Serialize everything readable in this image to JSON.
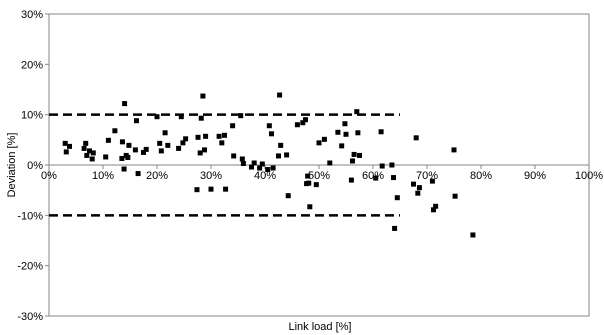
{
  "chart_data": {
    "type": "scatter",
    "xlabel": "Link load [%]",
    "ylabel": "Deviation [%]",
    "xlim": [
      0,
      100
    ],
    "ylim": [
      -30,
      30
    ],
    "x_ticks": [
      0,
      10,
      20,
      30,
      40,
      50,
      60,
      70,
      80,
      90,
      100
    ],
    "y_ticks": [
      -30,
      -20,
      -10,
      0,
      10,
      20,
      30
    ],
    "x_tick_labels": [
      "0%",
      "10%",
      "20%",
      "30%",
      "40%",
      "50%",
      "60%",
      "70%",
      "80%",
      "90%",
      "100%"
    ],
    "y_tick_labels": [
      "-30%",
      "-20%",
      "-10%",
      "0%",
      "10%",
      "20%",
      "30%"
    ],
    "grid": false,
    "marker_color": "#000000",
    "reference_lines": [
      {
        "y": 10,
        "x_range": [
          0,
          65
        ],
        "style": "dashed"
      },
      {
        "y": -10,
        "x_range": [
          0,
          65
        ],
        "style": "dashed"
      }
    ],
    "points": [
      {
        "x": 3.0,
        "y": 4.3
      },
      {
        "x": 3.2,
        "y": 2.6
      },
      {
        "x": 3.8,
        "y": 3.7
      },
      {
        "x": 6.5,
        "y": 3.3
      },
      {
        "x": 6.8,
        "y": 4.3
      },
      {
        "x": 7.0,
        "y": 1.9
      },
      {
        "x": 7.5,
        "y": 2.8
      },
      {
        "x": 8.0,
        "y": 1.2
      },
      {
        "x": 8.2,
        "y": 2.4
      },
      {
        "x": 10.5,
        "y": 1.6
      },
      {
        "x": 11.0,
        "y": 4.9
      },
      {
        "x": 12.2,
        "y": 6.8
      },
      {
        "x": 13.5,
        "y": 1.3
      },
      {
        "x": 13.6,
        "y": 4.6
      },
      {
        "x": 13.9,
        "y": -0.8
      },
      {
        "x": 14.0,
        "y": 12.2
      },
      {
        "x": 14.3,
        "y": 1.9
      },
      {
        "x": 14.6,
        "y": 1.5
      },
      {
        "x": 14.8,
        "y": 3.9
      },
      {
        "x": 16.0,
        "y": 3.0
      },
      {
        "x": 16.2,
        "y": 8.8
      },
      {
        "x": 16.5,
        "y": -1.7
      },
      {
        "x": 17.5,
        "y": 2.5
      },
      {
        "x": 18.0,
        "y": 3.1
      },
      {
        "x": 20.0,
        "y": 9.6
      },
      {
        "x": 20.5,
        "y": 4.3
      },
      {
        "x": 20.8,
        "y": 2.8
      },
      {
        "x": 21.5,
        "y": 6.4
      },
      {
        "x": 22.0,
        "y": 3.9
      },
      {
        "x": 24.0,
        "y": 3.3
      },
      {
        "x": 24.5,
        "y": 9.6
      },
      {
        "x": 24.8,
        "y": 4.4
      },
      {
        "x": 25.3,
        "y": 5.2
      },
      {
        "x": 27.4,
        "y": -4.9
      },
      {
        "x": 27.6,
        "y": 5.5
      },
      {
        "x": 28.0,
        "y": 2.4
      },
      {
        "x": 28.2,
        "y": 9.3
      },
      {
        "x": 28.5,
        "y": 13.7
      },
      {
        "x": 28.8,
        "y": 3.0
      },
      {
        "x": 29.0,
        "y": 5.7
      },
      {
        "x": 30.0,
        "y": -4.8
      },
      {
        "x": 31.5,
        "y": 5.7
      },
      {
        "x": 32.0,
        "y": 4.4
      },
      {
        "x": 32.5,
        "y": 5.9
      },
      {
        "x": 32.7,
        "y": -4.8
      },
      {
        "x": 34.0,
        "y": 7.8
      },
      {
        "x": 34.2,
        "y": 1.8
      },
      {
        "x": 35.5,
        "y": 9.8
      },
      {
        "x": 35.8,
        "y": 1.2
      },
      {
        "x": 36.0,
        "y": 0.3
      },
      {
        "x": 37.5,
        "y": -0.4
      },
      {
        "x": 38.0,
        "y": 0.4
      },
      {
        "x": 39.0,
        "y": -0.6
      },
      {
        "x": 39.5,
        "y": 0.2
      },
      {
        "x": 40.5,
        "y": -0.9
      },
      {
        "x": 40.8,
        "y": 7.8
      },
      {
        "x": 41.2,
        "y": 6.2
      },
      {
        "x": 41.5,
        "y": -0.6
      },
      {
        "x": 42.5,
        "y": 1.8
      },
      {
        "x": 42.7,
        "y": 13.9
      },
      {
        "x": 42.9,
        "y": 3.9
      },
      {
        "x": 44.0,
        "y": 2.0
      },
      {
        "x": 44.3,
        "y": -6.1
      },
      {
        "x": 46.0,
        "y": 8.0
      },
      {
        "x": 47.0,
        "y": 8.4
      },
      {
        "x": 47.5,
        "y": 9.0
      },
      {
        "x": 47.7,
        "y": -3.7
      },
      {
        "x": 47.9,
        "y": -2.2
      },
      {
        "x": 48.1,
        "y": -3.6
      },
      {
        "x": 48.3,
        "y": -8.3
      },
      {
        "x": 49.5,
        "y": -3.9
      },
      {
        "x": 50.0,
        "y": 4.4
      },
      {
        "x": 51.0,
        "y": 5.1
      },
      {
        "x": 52.0,
        "y": 0.4
      },
      {
        "x": 53.5,
        "y": 6.5
      },
      {
        "x": 54.2,
        "y": 3.8
      },
      {
        "x": 54.8,
        "y": 8.2
      },
      {
        "x": 55.0,
        "y": 6.1
      },
      {
        "x": 56.0,
        "y": -3.0
      },
      {
        "x": 56.2,
        "y": 0.8
      },
      {
        "x": 56.5,
        "y": 2.1
      },
      {
        "x": 57.0,
        "y": 10.6
      },
      {
        "x": 57.2,
        "y": 6.4
      },
      {
        "x": 57.5,
        "y": 1.9
      },
      {
        "x": 60.5,
        "y": -2.6
      },
      {
        "x": 61.5,
        "y": 6.6
      },
      {
        "x": 61.7,
        "y": -0.2
      },
      {
        "x": 63.5,
        "y": 0.0
      },
      {
        "x": 63.8,
        "y": -2.5
      },
      {
        "x": 64.0,
        "y": -12.6
      },
      {
        "x": 64.5,
        "y": -6.5
      },
      {
        "x": 67.5,
        "y": -3.8
      },
      {
        "x": 68.0,
        "y": 5.4
      },
      {
        "x": 68.3,
        "y": -5.6
      },
      {
        "x": 68.6,
        "y": -4.5
      },
      {
        "x": 71.0,
        "y": -3.2
      },
      {
        "x": 71.2,
        "y": -8.9
      },
      {
        "x": 71.6,
        "y": -8.2
      },
      {
        "x": 75.0,
        "y": 3.0
      },
      {
        "x": 75.2,
        "y": -6.2
      },
      {
        "x": 78.5,
        "y": -13.9
      }
    ]
  }
}
